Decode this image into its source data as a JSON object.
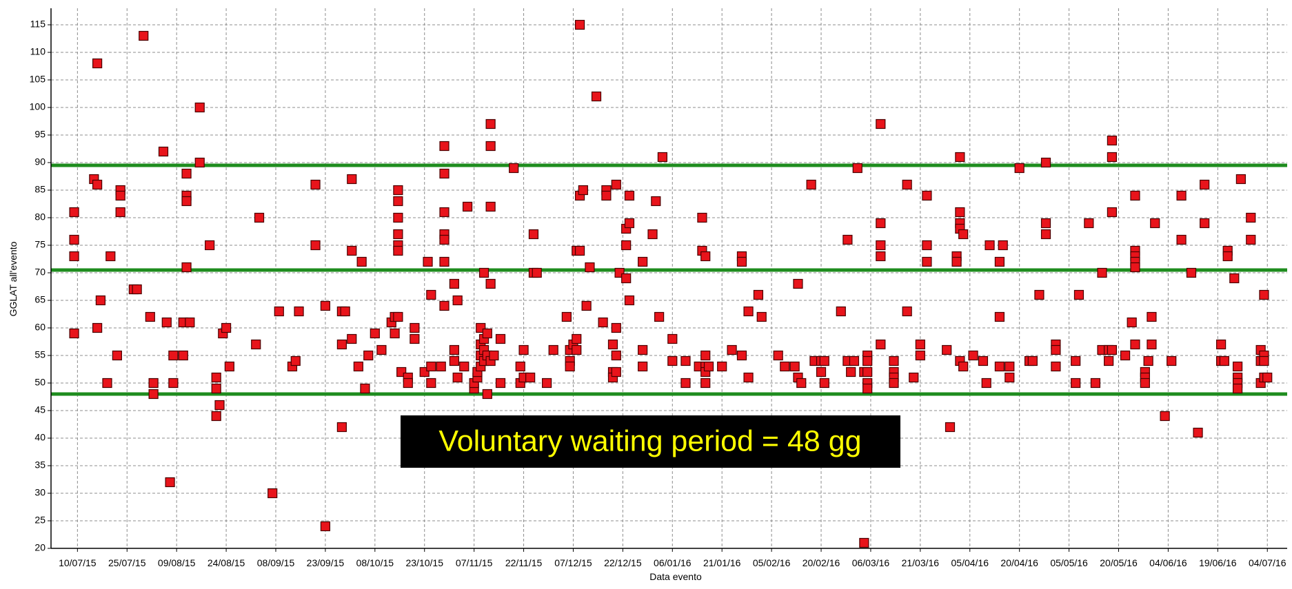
{
  "chart_data": {
    "type": "scatter",
    "x_label": "Data evento",
    "y_label": "GGLAT all'evento",
    "annotation": "Voluntary waiting period = 48 gg",
    "color": "#e8141b",
    "reference_lines": [
      48,
      70.5,
      89.5
    ],
    "reference_color": "#1e8c1e",
    "grid": true,
    "xlim": [
      "02/07/15",
      "10/07/16"
    ],
    "ylim": [
      20,
      118
    ],
    "xticks": [
      "10/07/15",
      "25/07/15",
      "09/08/15",
      "24/08/15",
      "08/09/15",
      "23/09/15",
      "08/10/15",
      "23/10/15",
      "07/11/15",
      "22/11/15",
      "07/12/15",
      "22/12/15",
      "06/01/16",
      "21/01/16",
      "05/02/16",
      "20/02/16",
      "06/03/16",
      "21/03/16",
      "05/04/16",
      "20/04/16",
      "05/05/16",
      "20/05/16",
      "04/06/16",
      "19/06/16",
      "04/07/16"
    ],
    "yticks": [
      20,
      25,
      30,
      35,
      40,
      45,
      50,
      55,
      60,
      65,
      70,
      75,
      80,
      85,
      90,
      95,
      100,
      105,
      110,
      115
    ],
    "x": [
      "09/07/15",
      "09/07/15",
      "09/07/15",
      "09/07/15",
      "15/07/15",
      "16/07/15",
      "16/07/15",
      "16/07/15",
      "17/07/15",
      "19/07/15",
      "20/07/15",
      "22/07/15",
      "23/07/15",
      "23/07/15",
      "23/07/15",
      "27/07/15",
      "28/07/15",
      "30/07/15",
      "01/08/15",
      "02/08/15",
      "02/08/15",
      "05/08/15",
      "06/08/15",
      "07/08/15",
      "08/08/15",
      "08/08/15",
      "11/08/15",
      "11/08/15",
      "12/08/15",
      "12/08/15",
      "12/08/15",
      "12/08/15",
      "13/08/15",
      "16/08/15",
      "16/08/15",
      "19/08/15",
      "21/08/15",
      "21/08/15",
      "21/08/15",
      "22/08/15",
      "23/08/15",
      "24/08/15",
      "25/08/15",
      "02/09/15",
      "03/09/15",
      "07/09/15",
      "09/09/15",
      "13/09/15",
      "14/09/15",
      "15/09/15",
      "20/09/15",
      "20/09/15",
      "23/09/15",
      "23/09/15",
      "28/09/15",
      "28/09/15",
      "28/09/15",
      "29/09/15",
      "01/10/15",
      "01/10/15",
      "01/10/15",
      "03/10/15",
      "04/10/15",
      "05/10/15",
      "06/10/15",
      "08/10/15",
      "10/10/15",
      "13/10/15",
      "14/10/15",
      "14/10/15",
      "15/10/15",
      "15/10/15",
      "15/10/15",
      "15/10/15",
      "15/10/15",
      "15/10/15",
      "15/10/15",
      "16/10/15",
      "18/10/15",
      "18/10/15",
      "20/10/15",
      "20/10/15",
      "23/10/15",
      "24/10/15",
      "25/10/15",
      "25/10/15",
      "25/10/15",
      "28/10/15",
      "29/10/15",
      "29/10/15",
      "29/10/15",
      "29/10/15",
      "29/10/15",
      "29/10/15",
      "29/10/15",
      "01/11/15",
      "01/11/15",
      "01/11/15",
      "02/11/15",
      "02/11/15",
      "04/11/15",
      "05/11/15",
      "07/11/15",
      "07/11/15",
      "08/11/15",
      "08/11/15",
      "09/11/15",
      "09/11/15",
      "09/11/15",
      "09/11/15",
      "10/11/15",
      "10/11/15",
      "10/11/15",
      "10/11/15",
      "11/11/15",
      "11/11/15",
      "11/11/15",
      "12/11/15",
      "12/11/15",
      "12/11/15",
      "12/11/15",
      "12/11/15",
      "13/11/15",
      "15/11/15",
      "15/11/15",
      "19/11/15",
      "21/11/15",
      "21/11/15",
      "22/11/15",
      "22/11/15",
      "24/11/15",
      "25/11/15",
      "25/11/15",
      "26/11/15",
      "29/11/15",
      "01/12/15",
      "05/12/15",
      "06/12/15",
      "06/12/15",
      "06/12/15",
      "07/12/15",
      "08/12/15",
      "08/12/15",
      "08/12/15",
      "09/12/15",
      "09/12/15",
      "09/12/15",
      "10/12/15",
      "11/12/15",
      "12/12/15",
      "14/12/15",
      "16/12/15",
      "17/12/15",
      "17/12/15",
      "19/12/15",
      "19/12/15",
      "19/12/15",
      "20/12/15",
      "20/12/15",
      "20/12/15",
      "20/12/15",
      "21/12/15",
      "23/12/15",
      "23/12/15",
      "23/12/15",
      "24/12/15",
      "24/12/15",
      "24/12/15",
      "28/12/15",
      "28/12/15",
      "28/12/15",
      "31/12/15",
      "01/01/16",
      "02/01/16",
      "03/01/16",
      "06/01/16",
      "06/01/16",
      "10/01/16",
      "10/01/16",
      "14/01/16",
      "15/01/16",
      "15/01/16",
      "16/01/16",
      "16/01/16",
      "16/01/16",
      "16/01/16",
      "16/01/16",
      "17/01/16",
      "21/01/16",
      "24/01/16",
      "27/01/16",
      "27/01/16",
      "27/01/16",
      "29/01/16",
      "29/01/16",
      "01/02/16",
      "02/02/16",
      "07/02/16",
      "09/02/16",
      "12/02/16",
      "13/02/16",
      "13/02/16",
      "14/02/16",
      "17/02/16",
      "18/02/16",
      "20/02/16",
      "20/02/16",
      "21/02/16",
      "21/02/16",
      "26/02/16",
      "28/02/16",
      "28/02/16",
      "29/02/16",
      "01/03/16",
      "02/03/16",
      "04/03/16",
      "04/03/16",
      "05/03/16",
      "05/03/16",
      "05/03/16",
      "05/03/16",
      "05/03/16",
      "09/03/16",
      "09/03/16",
      "09/03/16",
      "09/03/16",
      "09/03/16",
      "13/03/16",
      "13/03/16",
      "13/03/16",
      "13/03/16",
      "17/03/16",
      "17/03/16",
      "19/03/16",
      "21/03/16",
      "21/03/16",
      "23/03/16",
      "23/03/16",
      "23/03/16",
      "29/03/16",
      "30/03/16",
      "01/04/16",
      "01/04/16",
      "02/04/16",
      "02/04/16",
      "02/04/16",
      "02/04/16",
      "02/04/16",
      "03/04/16",
      "03/04/16",
      "06/04/16",
      "09/04/16",
      "10/04/16",
      "11/04/16",
      "14/04/16",
      "14/04/16",
      "14/04/16",
      "15/04/16",
      "17/04/16",
      "17/04/16",
      "20/04/16",
      "23/04/16",
      "24/04/16",
      "26/04/16",
      "28/04/16",
      "28/04/16",
      "28/04/16",
      "01/05/16",
      "01/05/16",
      "01/05/16",
      "07/05/16",
      "07/05/16",
      "08/05/16",
      "11/05/16",
      "13/05/16",
      "15/05/16",
      "15/05/16",
      "17/05/16",
      "17/05/16",
      "18/05/16",
      "18/05/16",
      "18/05/16",
      "18/05/16",
      "22/05/16",
      "24/05/16",
      "25/05/16",
      "25/05/16",
      "25/05/16",
      "25/05/16",
      "25/05/16",
      "25/05/16",
      "28/05/16",
      "28/05/16",
      "28/05/16",
      "29/05/16",
      "30/05/16",
      "30/05/16",
      "31/05/16",
      "03/06/16",
      "05/06/16",
      "08/06/16",
      "08/06/16",
      "11/06/16",
      "13/06/16",
      "15/06/16",
      "15/06/16",
      "20/06/16",
      "20/06/16",
      "21/06/16",
      "22/06/16",
      "22/06/16",
      "24/06/16",
      "25/06/16",
      "25/06/16",
      "25/06/16",
      "25/06/16",
      "26/06/16",
      "29/06/16",
      "29/06/16",
      "02/07/16",
      "02/07/16",
      "02/07/16",
      "03/07/16",
      "03/07/16",
      "03/07/16",
      "03/07/16",
      "04/07/16"
    ],
    "values": [
      81,
      76,
      73,
      59,
      87,
      108,
      86,
      60,
      65,
      50,
      73,
      55,
      81,
      85,
      84,
      67,
      67,
      113,
      62,
      50,
      48,
      92,
      61,
      32,
      50,
      55,
      61,
      55,
      88,
      84,
      83,
      71,
      61,
      100,
      90,
      75,
      51,
      49,
      44,
      46,
      59,
      60,
      53,
      57,
      80,
      30,
      63,
      53,
      54,
      63,
      86,
      75,
      64,
      24,
      42,
      57,
      63,
      63,
      87,
      74,
      58,
      53,
      72,
      49,
      55,
      59,
      56,
      61,
      62,
      59,
      85,
      83,
      80,
      77,
      75,
      74,
      62,
      52,
      51,
      50,
      60,
      58,
      52,
      72,
      66,
      53,
      50,
      53,
      93,
      88,
      81,
      77,
      76,
      72,
      64,
      68,
      56,
      54,
      65,
      51,
      53,
      82,
      49,
      50,
      51,
      52,
      60,
      57,
      55,
      53,
      70,
      58,
      56,
      54,
      59,
      48,
      55,
      97,
      93,
      82,
      68,
      54,
      55,
      58,
      50,
      89,
      50,
      53,
      56,
      51,
      51,
      77,
      70,
      70,
      50,
      56,
      62,
      56,
      54,
      53,
      57,
      74,
      58,
      56,
      115,
      84,
      74,
      85,
      64,
      71,
      102,
      61,
      85,
      84,
      57,
      52,
      51,
      86,
      60,
      55,
      52,
      70,
      78,
      75,
      69,
      84,
      79,
      65,
      72,
      56,
      53,
      77,
      83,
      62,
      91,
      58,
      54,
      50,
      54,
      53,
      80,
      74,
      73,
      55,
      53,
      52,
      50,
      53,
      53,
      56,
      73,
      72,
      55,
      63,
      51,
      66,
      62,
      55,
      53,
      53,
      68,
      51,
      50,
      86,
      54,
      52,
      54,
      54,
      50,
      63,
      76,
      54,
      52,
      54,
      89,
      21,
      52,
      55,
      54,
      52,
      50,
      49,
      97,
      79,
      75,
      73,
      57,
      54,
      52,
      51,
      50,
      86,
      63,
      51,
      57,
      55,
      84,
      75,
      72,
      56,
      42,
      73,
      72,
      91,
      81,
      79,
      78,
      54,
      77,
      53,
      55,
      54,
      50,
      75,
      72,
      62,
      53,
      75,
      53,
      51,
      89,
      54,
      54,
      66,
      90,
      79,
      77,
      57,
      56,
      53,
      54,
      50,
      66,
      79,
      50,
      70,
      56,
      56,
      54,
      94,
      91,
      81,
      56,
      55,
      61,
      84,
      74,
      73,
      72,
      71,
      57,
      52,
      51,
      50,
      54,
      62,
      57,
      79,
      44,
      54,
      84,
      76,
      70,
      41,
      86,
      79,
      57,
      54,
      54,
      74,
      73,
      69,
      53,
      51,
      50,
      49,
      87,
      80,
      76,
      56,
      54,
      50,
      66,
      55,
      54,
      51,
      51
    ]
  }
}
